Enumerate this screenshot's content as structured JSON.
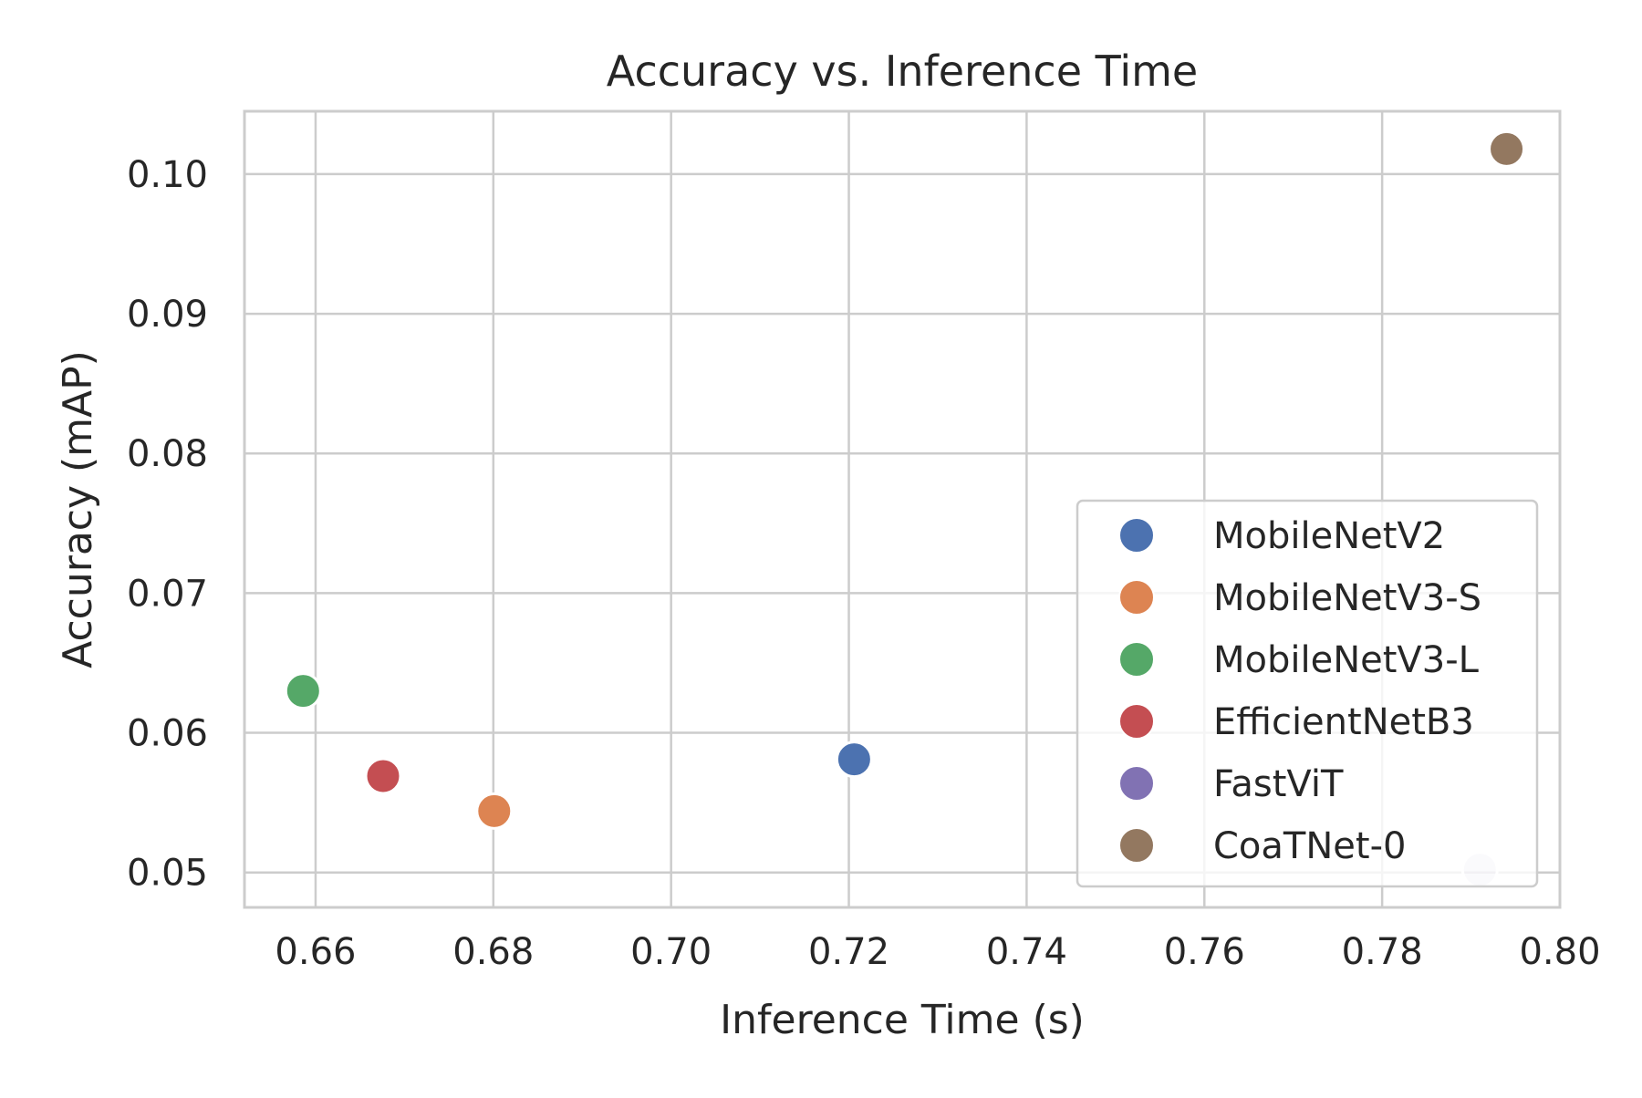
{
  "chart_data": {
    "type": "scatter",
    "title": "Accuracy vs. Inference Time",
    "xlabel": "Inference Time (s)",
    "ylabel": "Accuracy (mAP)",
    "xlim": [
      0.652,
      0.8
    ],
    "ylim": [
      0.0475,
      0.1045
    ],
    "xticks": [
      0.66,
      0.68,
      0.7,
      0.72,
      0.74,
      0.76,
      0.78,
      0.8
    ],
    "xtick_labels": [
      "0.66",
      "0.68",
      "0.70",
      "0.72",
      "0.74",
      "0.76",
      "0.78",
      "0.80"
    ],
    "yticks": [
      0.05,
      0.06,
      0.07,
      0.08,
      0.09,
      0.1
    ],
    "ytick_labels": [
      "0.05",
      "0.06",
      "0.07",
      "0.08",
      "0.09",
      "0.10"
    ],
    "grid": true,
    "legend_position": "lower right",
    "series": [
      {
        "name": "MobileNetV2",
        "color": "#4C72B0",
        "x": [
          0.7206
        ],
        "y": [
          0.0581
        ]
      },
      {
        "name": "MobileNetV3-S",
        "color": "#DD8452",
        "x": [
          0.6801
        ],
        "y": [
          0.0544
        ]
      },
      {
        "name": "MobileNetV3-L",
        "color": "#55A868",
        "x": [
          0.6586
        ],
        "y": [
          0.063
        ]
      },
      {
        "name": "EfficientNetB3",
        "color": "#C44E52",
        "x": [
          0.6676
        ],
        "y": [
          0.0569
        ]
      },
      {
        "name": "FastViT",
        "color": "#8172B3",
        "x": [
          0.791
        ],
        "y": [
          0.0502
        ]
      },
      {
        "name": "CoaTNet-0",
        "color": "#937860",
        "x": [
          0.794
        ],
        "y": [
          0.1018
        ]
      }
    ]
  }
}
